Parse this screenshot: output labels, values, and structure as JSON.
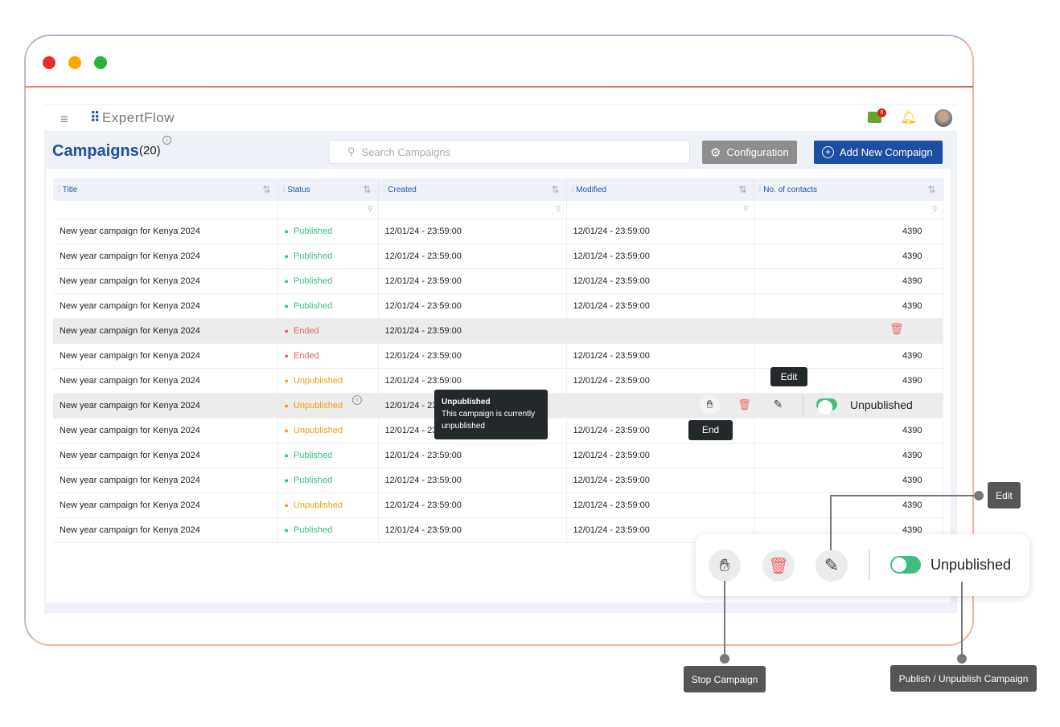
{
  "window": {
    "controls": {
      "close": "#e22e2e",
      "minimize": "#ffa500",
      "maximize": "#27b33a"
    }
  },
  "topbar": {
    "logo": "ExpertFlow",
    "notification_count": "6",
    "icons": [
      "menu-icon",
      "chat-icon",
      "bell-icon",
      "avatar"
    ]
  },
  "page": {
    "title": "Campaigns",
    "count": "(20)",
    "search_placeholder": "Search Campaigns",
    "config_label": "Configuration",
    "add_label": "Add New Compaign"
  },
  "table": {
    "columns": [
      "Title",
      "Status",
      "Created",
      "Modified",
      "No. of contacts"
    ],
    "rows": [
      {
        "title": "New year campaign for Kenya 2024",
        "status": "Published",
        "created": "12/01/24 - 23:59:00",
        "modified": "12/01/24 - 23:59:00",
        "contacts": "4390"
      },
      {
        "title": "New year campaign for Kenya 2024",
        "status": "Published",
        "created": "12/01/24 - 23:59:00",
        "modified": "12/01/24 - 23:59:00",
        "contacts": "4390"
      },
      {
        "title": "New year campaign for Kenya 2024",
        "status": "Published",
        "created": "12/01/24 - 23:59:00",
        "modified": "12/01/24 - 23:59:00",
        "contacts": "4390"
      },
      {
        "title": "New year campaign for Kenya 2024",
        "status": "Published",
        "created": "12/01/24 - 23:59:00",
        "modified": "12/01/24 - 23:59:00",
        "contacts": "4390"
      },
      {
        "title": "New year campaign for Kenya 2024",
        "status": "Ended",
        "created": "12/01/24 - 23:59:00",
        "modified": "",
        "contacts": "",
        "hover": "ended"
      },
      {
        "title": "New year campaign for Kenya 2024",
        "status": "Ended",
        "created": "12/01/24 - 23:59:00",
        "modified": "12/01/24 - 23:59:00",
        "contacts": "4390"
      },
      {
        "title": "New year campaign for Kenya 2024",
        "status": "Unpublished",
        "created": "12/01/24 - 23:59:00",
        "modified": "12/01/24 - 23:59:00",
        "contacts": "4390"
      },
      {
        "title": "New year campaign for Kenya 2024",
        "status": "Unpublished",
        "created": "12/01/24 - 23:59:00",
        "modified": "",
        "contacts": "",
        "hover": "actions"
      },
      {
        "title": "New year campaign for Kenya 2024",
        "status": "Unpublished",
        "created": "12/01/24 - 23:59:00",
        "modified": "12/01/24 - 23:59:00",
        "contacts": "4390"
      },
      {
        "title": "New year campaign for Kenya 2024",
        "status": "Published",
        "created": "12/01/24 - 23:59:00",
        "modified": "12/01/24 - 23:59:00",
        "contacts": "4390"
      },
      {
        "title": "New year campaign for Kenya 2024",
        "status": "Published",
        "created": "12/01/24 - 23:59:00",
        "modified": "12/01/24 - 23:59:00",
        "contacts": "4390"
      },
      {
        "title": "New year campaign for Kenya 2024",
        "status": "Unpublished",
        "created": "12/01/24 - 23:59:00",
        "modified": "12/01/24 - 23:59:00",
        "contacts": "4390"
      },
      {
        "title": "New year campaign for Kenya 2024",
        "status": "Published",
        "created": "12/01/24 - 23:59:00",
        "modified": "12/01/24 - 23:59:00",
        "contacts": "4390"
      }
    ]
  },
  "status_colors": {
    "Published": "#3dbb7c",
    "Ended": "#e0625a",
    "Unpublished": "#f39a12"
  },
  "tooltips": {
    "status_title": "Unpublished",
    "status_body": "This campaign is currently unpublished",
    "edit": "Edit",
    "end": "End"
  },
  "row_actions": {
    "toggle_label": "Unpublished"
  },
  "callout": {
    "toggle_label": "Unpublished",
    "edit": "Edit",
    "stop": "Stop Campaign",
    "publish": "Publish / Unpublish Campaign"
  }
}
